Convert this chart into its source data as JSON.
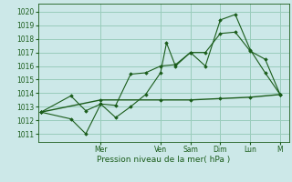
{
  "background_color": "#cce8e8",
  "grid_color": "#99ccbb",
  "line_color": "#1a5c1a",
  "marker_color": "#1a5c1a",
  "ylabel_ticks": [
    1011,
    1012,
    1013,
    1014,
    1015,
    1016,
    1017,
    1018,
    1019,
    1020
  ],
  "ylim": [
    1010.4,
    1020.6
  ],
  "xlabel": "Pression niveau de la mer( hPa )",
  "day_labels": [
    "Mer",
    "Ven",
    "Sam",
    "Dim",
    "Lun",
    "M"
  ],
  "day_positions": [
    2.0,
    4.0,
    5.0,
    6.0,
    7.0,
    8.0
  ],
  "series1_x": [
    0,
    1,
    1.5,
    2,
    2.5,
    3,
    3.5,
    4,
    4.2,
    4.5,
    5,
    5.5,
    6,
    6.5,
    7,
    7.5,
    8
  ],
  "series1_y": [
    1012.6,
    1012.1,
    1011.0,
    1013.2,
    1012.2,
    1013.0,
    1013.9,
    1015.5,
    1017.7,
    1016.0,
    1017.0,
    1016.0,
    1019.4,
    1019.8,
    1017.2,
    1015.5,
    1013.9
  ],
  "series2_x": [
    0,
    1,
    1.5,
    2,
    2.5,
    3,
    3.5,
    4,
    4.5,
    5,
    5.5,
    6,
    6.5,
    7,
    7.5,
    8
  ],
  "series2_y": [
    1012.6,
    1013.8,
    1012.7,
    1013.2,
    1013.1,
    1015.4,
    1015.5,
    1016.0,
    1016.1,
    1017.0,
    1017.0,
    1018.4,
    1018.5,
    1017.1,
    1016.5,
    1013.9
  ],
  "series3_x": [
    0,
    2,
    4,
    5,
    6,
    7,
    8
  ],
  "series3_y": [
    1012.6,
    1013.5,
    1013.5,
    1013.5,
    1013.6,
    1013.7,
    1013.9
  ],
  "xlim": [
    -0.1,
    8.3
  ]
}
